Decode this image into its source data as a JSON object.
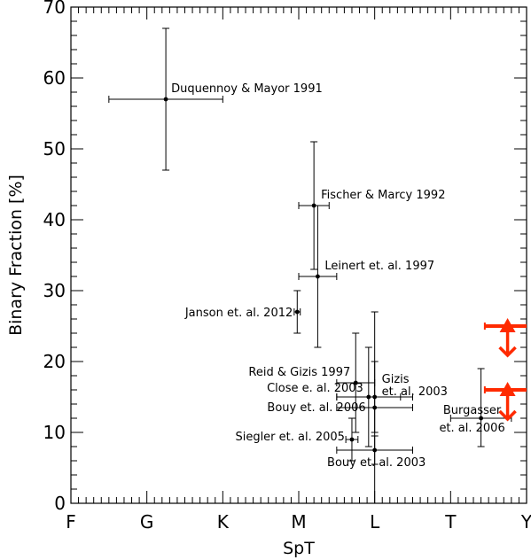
{
  "chart_data": {
    "type": "scatter",
    "xlabel": "SpT",
    "ylabel": "Binary Fraction [%]",
    "ylim": [
      0,
      70
    ],
    "categories": [
      "F",
      "G",
      "K",
      "M",
      "L",
      "T",
      "Y"
    ],
    "y_ticks": [
      "0",
      "10",
      "20",
      "30",
      "40",
      "50",
      "60",
      "70"
    ],
    "series": [
      {
        "points": [
          {
            "label": "Duquennoy & Mayor 1991",
            "x": 1.25,
            "y": 57,
            "xerr": [
              0.75,
              0.75
            ],
            "yerr": [
              10,
              10
            ]
          },
          {
            "label": "Fischer & Marcy 1992",
            "x": 3.2,
            "y": 42,
            "xerr": [
              0.2,
              0.2
            ],
            "yerr": [
              9,
              9
            ]
          },
          {
            "label": "Leinert et. al. 1997",
            "x": 3.25,
            "y": 32,
            "xerr": [
              0.25,
              0.25
            ],
            "yerr": [
              10,
              10
            ]
          },
          {
            "label": "Janson et. al. 2012",
            "x": 2.98,
            "y": 27,
            "xerr": [
              0.04,
              0.04
            ],
            "yerr": [
              3,
              3
            ]
          },
          {
            "label": "Reid & Gizis 1997",
            "x": 3.75,
            "y": 17,
            "xerr": [
              0.25,
              0.25
            ],
            "yerr": [
              7,
              7
            ]
          },
          {
            "label": "Gizis et. al. 2003",
            "x": 4.0,
            "y": 15,
            "xerr": [
              0.5,
              0.5
            ],
            "yerr": [
              5,
              5
            ]
          },
          {
            "label": "Close e. al. 2003",
            "x": 3.92,
            "y": 15,
            "xerr": [
              0.42,
              0.42
            ],
            "yerr": [
              7,
              7
            ]
          },
          {
            "label": "Bouy et. al. 2006",
            "x": 4.0,
            "y": 13.5,
            "xerr": [
              0.5,
              0.5
            ],
            "yerr": [
              13.5,
              13.5
            ]
          },
          {
            "label": "Siegler et. al. 2005",
            "x": 3.7,
            "y": 9,
            "xerr": [
              0.08,
              0.08
            ],
            "yerr": [
              3,
              3
            ]
          },
          {
            "label": "Bouy et. al. 2003",
            "x": 4.0,
            "y": 7.5,
            "xerr": [
              0.5,
              0.5
            ],
            "yerr": [
              2,
              2
            ]
          },
          {
            "label": "Burgasser et. al. 2006",
            "x": 5.4,
            "y": 12,
            "xerr": [
              0.4,
              0.4
            ],
            "yerr": [
              4,
              7
            ]
          }
        ]
      },
      {
        "color": "#ff2a00",
        "type": "upper-limits",
        "points": [
          {
            "x": 5.75,
            "y": 25,
            "xerr": [
              0.3,
              0.3
            ]
          },
          {
            "x": 5.75,
            "y": 16,
            "xerr": [
              0.3,
              0.3
            ]
          }
        ]
      }
    ]
  }
}
